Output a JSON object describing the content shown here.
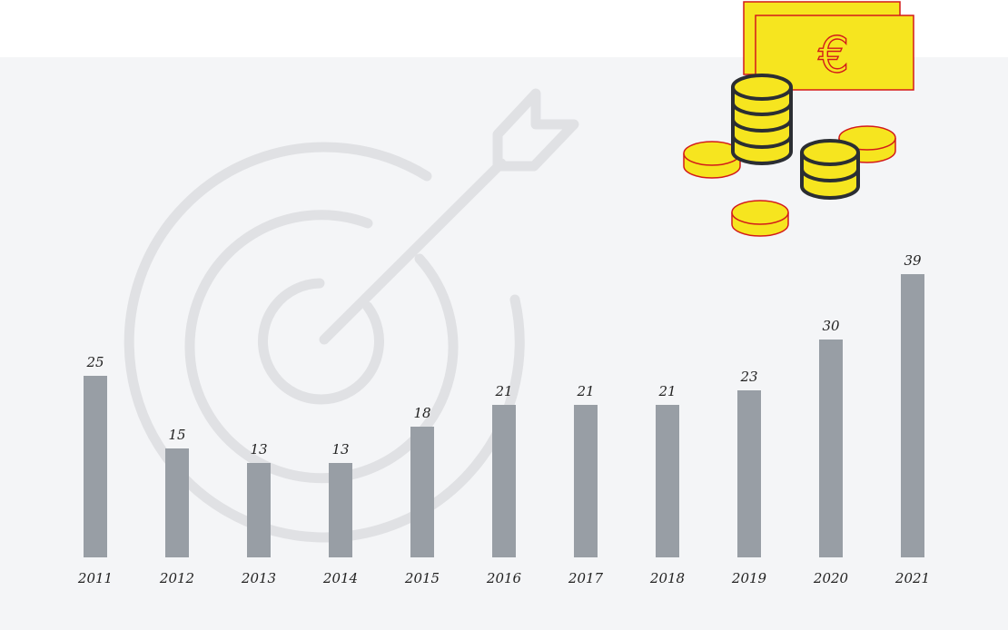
{
  "colors": {
    "panel_background": "#f4f5f7",
    "bar": "#989ea5",
    "target_decoration": "#e0e1e4",
    "money_yellow": "#f6e51f",
    "money_outline": "#d31a1a",
    "coin_stack_outline": "#2b2e33"
  },
  "icons": [
    "target-with-arrow-icon",
    "euro-banknote-icon",
    "coin-stack-icon",
    "coin-icon"
  ],
  "banknote_symbol": "€",
  "chart_data": {
    "type": "bar",
    "categories": [
      "2011",
      "2012",
      "2013",
      "2014",
      "2015",
      "2016",
      "2017",
      "2018",
      "2019",
      "2020",
      "2021"
    ],
    "values": [
      25,
      15,
      13,
      13,
      18,
      21,
      21,
      21,
      23,
      30,
      39
    ],
    "title": "",
    "xlabel": "",
    "ylabel": "",
    "ylim": [
      0,
      40
    ],
    "grid": false,
    "legend": "none",
    "data_labels": true
  }
}
